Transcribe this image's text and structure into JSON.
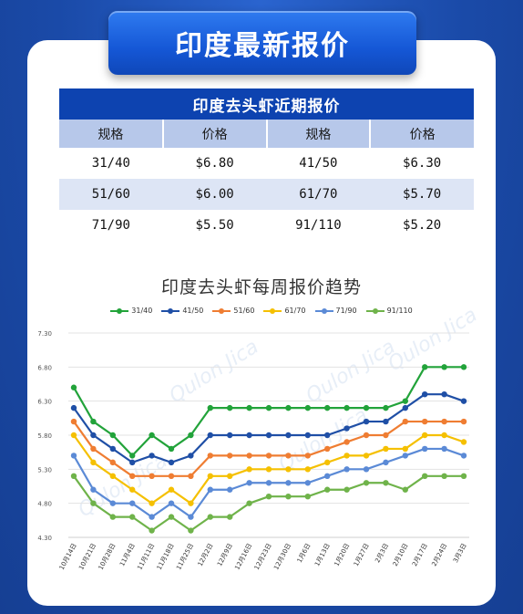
{
  "banner": {
    "title": "印度最新报价"
  },
  "table": {
    "title": "印度去头虾近期报价",
    "headers": [
      "规格",
      "价格",
      "规格",
      "价格"
    ],
    "rows": [
      [
        "31/40",
        "$6.80",
        "41/50",
        "$6.30"
      ],
      [
        "51/60",
        "$6.00",
        "61/70",
        "$5.70"
      ],
      [
        "71/90",
        "$5.50",
        "91/110",
        "$5.20"
      ]
    ]
  },
  "watermark": "Qulon Jica",
  "chart_data": {
    "type": "line",
    "title": "印度去头虾每周报价趋势",
    "categories": [
      "10月14日",
      "10月21日",
      "10月28日",
      "11月4日",
      "11月11日",
      "11月18日",
      "11月25日",
      "12月2日",
      "12月9日",
      "12月16日",
      "12月23日",
      "12月30日",
      "1月6日",
      "1月13日",
      "1月20日",
      "1月27日",
      "2月3日",
      "2月10日",
      "2月17日",
      "2月24日",
      "3月3日"
    ],
    "xlabel": "",
    "ylabel": "",
    "yticks": [
      "4.30",
      "4.80",
      "5.30",
      "5.80",
      "6.30",
      "6.80",
      "7.30"
    ],
    "ylim": [
      4.3,
      7.3
    ],
    "grid": true,
    "legend_position": "top",
    "series": [
      {
        "name": "31/40",
        "color": "#22a33a",
        "values": [
          6.5,
          6.0,
          5.8,
          5.5,
          5.8,
          5.6,
          5.8,
          6.2,
          6.2,
          6.2,
          6.2,
          6.2,
          6.2,
          6.2,
          6.2,
          6.2,
          6.2,
          6.3,
          6.8,
          6.8,
          6.8
        ]
      },
      {
        "name": "41/50",
        "color": "#1f4fa6",
        "values": [
          6.2,
          5.8,
          5.6,
          5.4,
          5.5,
          5.4,
          5.5,
          5.8,
          5.8,
          5.8,
          5.8,
          5.8,
          5.8,
          5.8,
          5.9,
          6.0,
          6.0,
          6.2,
          6.4,
          6.4,
          6.3
        ]
      },
      {
        "name": "51/60",
        "color": "#ef7d32",
        "values": [
          6.0,
          5.6,
          5.4,
          5.2,
          5.2,
          5.2,
          5.2,
          5.5,
          5.5,
          5.5,
          5.5,
          5.5,
          5.5,
          5.6,
          5.7,
          5.8,
          5.8,
          6.0,
          6.0,
          6.0,
          6.0
        ]
      },
      {
        "name": "61/70",
        "color": "#f5c000",
        "values": [
          5.8,
          5.4,
          5.2,
          5.0,
          4.8,
          5.0,
          4.8,
          5.2,
          5.2,
          5.3,
          5.3,
          5.3,
          5.3,
          5.4,
          5.5,
          5.5,
          5.6,
          5.6,
          5.8,
          5.8,
          5.7
        ]
      },
      {
        "name": "71/90",
        "color": "#5b8ad6",
        "values": [
          5.5,
          5.0,
          4.8,
          4.8,
          4.6,
          4.8,
          4.6,
          5.0,
          5.0,
          5.1,
          5.1,
          5.1,
          5.1,
          5.2,
          5.3,
          5.3,
          5.4,
          5.5,
          5.6,
          5.6,
          5.5
        ]
      },
      {
        "name": "91/110",
        "color": "#6fb34a",
        "values": [
          5.2,
          4.8,
          4.6,
          4.6,
          4.4,
          4.6,
          4.4,
          4.6,
          4.6,
          4.8,
          4.9,
          4.9,
          4.9,
          5.0,
          5.0,
          5.1,
          5.1,
          5.0,
          5.2,
          5.2,
          5.2
        ]
      }
    ]
  }
}
